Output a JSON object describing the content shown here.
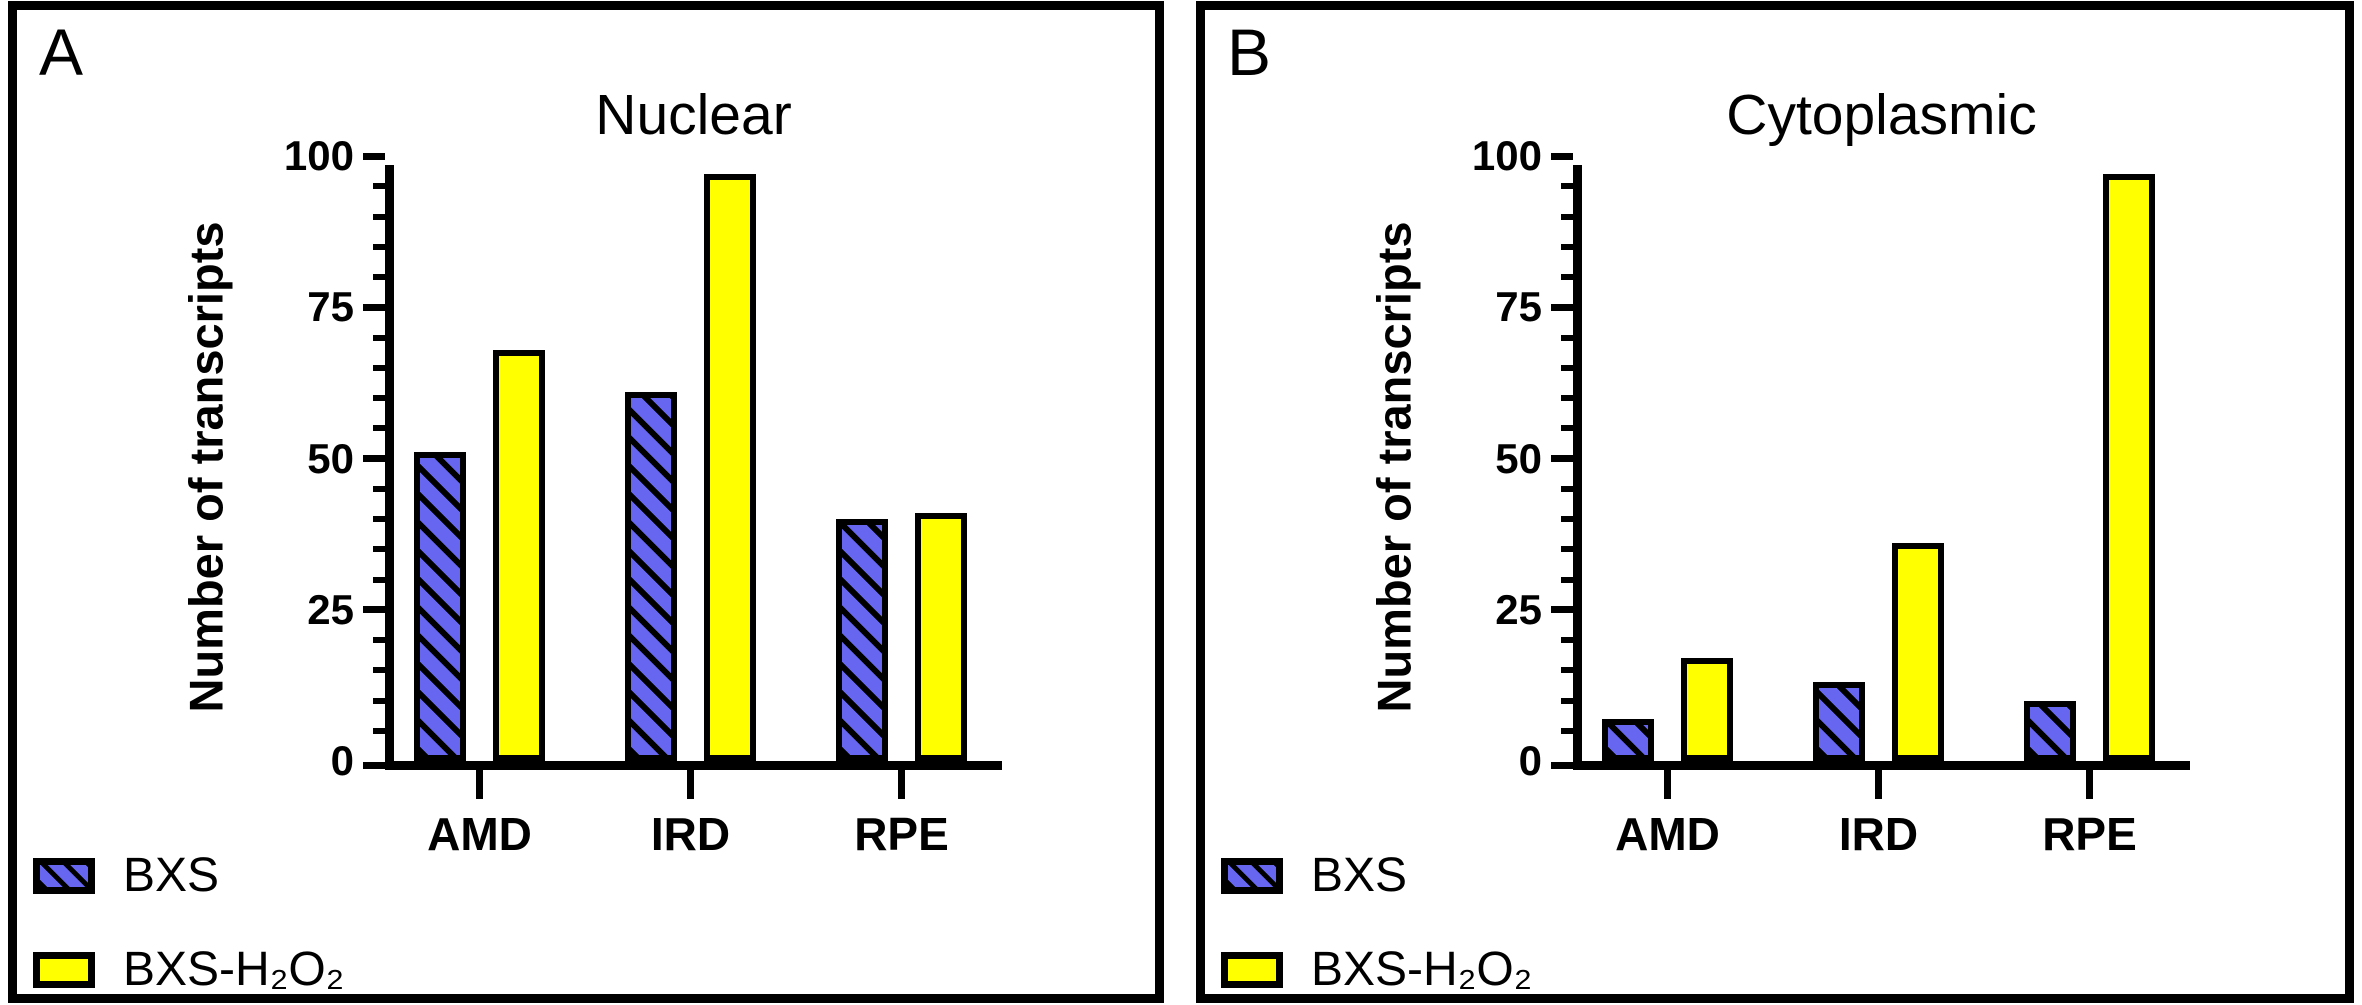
{
  "colors": {
    "bxs_fill": "#6666F0",
    "h2o2_fill": "#FFFF00",
    "hatch_line": "#000000",
    "bar_border": "#000000",
    "axis": "#000000",
    "panel_border": "#000000",
    "background": "#FFFFFF"
  },
  "chart_data": [
    {
      "panel_letter": "A",
      "type": "bar",
      "title": "Nuclear",
      "ylabel": "Number of transcripts",
      "categories": [
        "AMD",
        "IRD",
        "RPE"
      ],
      "series": [
        {
          "name": "BXS",
          "style": "blue-hatched",
          "values": [
            51,
            61,
            40
          ]
        },
        {
          "name": "BXS-H₂O₂",
          "style": "yellow-solid",
          "values": [
            68,
            97,
            41
          ]
        }
      ],
      "ylim": [
        0,
        100
      ],
      "ytick_labels": [
        "0",
        "25",
        "50",
        "75",
        "100"
      ],
      "ytick_major_step": 25,
      "ytick_minor_step": 5,
      "grid": false,
      "legend_position": "bottom-left"
    },
    {
      "panel_letter": "B",
      "type": "bar",
      "title": "Cytoplasmic",
      "ylabel": "Number of transcripts",
      "categories": [
        "AMD",
        "IRD",
        "RPE"
      ],
      "series": [
        {
          "name": "BXS",
          "style": "blue-hatched",
          "values": [
            7,
            13,
            10
          ]
        },
        {
          "name": "BXS-H₂O₂",
          "style": "yellow-solid",
          "values": [
            17,
            36,
            97
          ]
        }
      ],
      "ylim": [
        0,
        100
      ],
      "ytick_labels": [
        "0",
        "25",
        "50",
        "75",
        "100"
      ],
      "ytick_major_step": 25,
      "ytick_minor_step": 5,
      "grid": false,
      "legend_position": "bottom-left"
    }
  ]
}
